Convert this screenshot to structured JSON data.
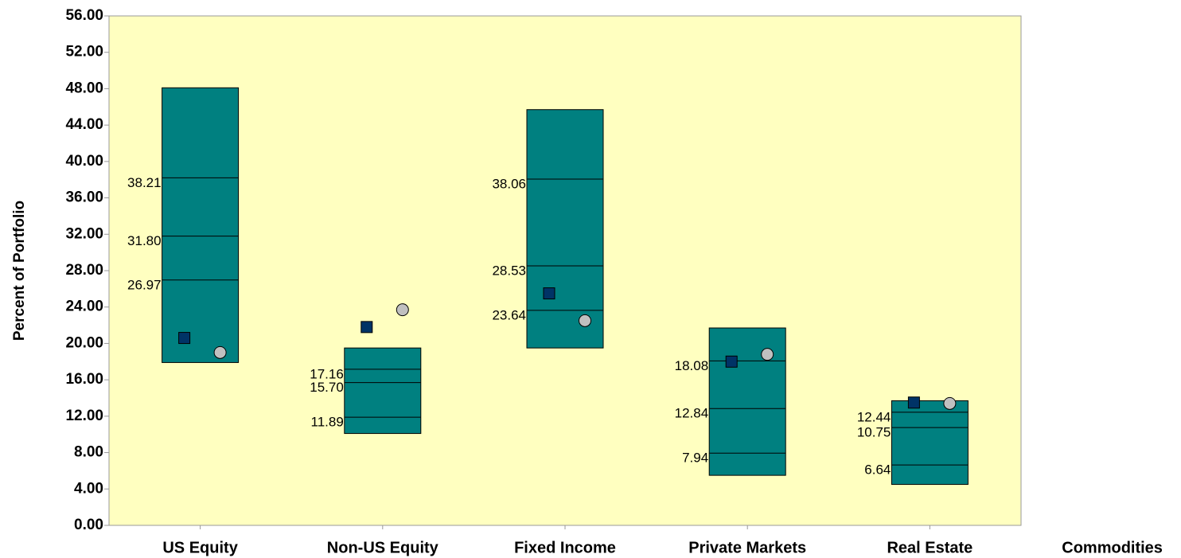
{
  "chart_data": {
    "type": "floating_box",
    "y_label": "Percent of Portfolio",
    "categories": [
      "US Equity",
      "Non-US Equity",
      "Fixed Income",
      "Private Markets",
      "Real Estate",
      "Commodities"
    ],
    "upper": [
      48.1,
      19.5,
      45.7,
      21.7,
      13.7,
      null
    ],
    "lower": [
      17.9,
      10.1,
      19.5,
      5.5,
      4.5,
      null
    ],
    "lines": [
      [
        38.21,
        31.8,
        26.97
      ],
      [
        17.16,
        15.7,
        11.89
      ],
      [
        38.06,
        28.53,
        23.64
      ],
      [
        18.08,
        12.84,
        7.94
      ],
      [
        12.44,
        10.75,
        6.64
      ],
      null
    ],
    "line_labels": [
      [
        "38.21",
        "31.80",
        "26.97"
      ],
      [
        "17.16",
        "15.70",
        "11.89"
      ],
      [
        "38.06",
        "28.53",
        "23.64"
      ],
      [
        "18.08",
        "12.84",
        "7.94"
      ],
      [
        "12.44",
        "10.75",
        "6.64"
      ],
      null
    ],
    "square": [
      20.6,
      21.8,
      25.5,
      18.0,
      13.5,
      null
    ],
    "circle": [
      19.0,
      23.7,
      22.5,
      18.8,
      13.4,
      null
    ],
    "box_color": "#008080",
    "square_color": "#003366",
    "circle_color": "#c0c0c0",
    "background": "#ffffc0",
    "ylim": [
      0,
      56
    ],
    "yticks": [
      {
        "value": 0,
        "label": "0.00"
      },
      {
        "value": 4,
        "label": "4.00"
      },
      {
        "value": 8,
        "label": "8.00"
      },
      {
        "value": 12,
        "label": "12.00"
      },
      {
        "value": 16,
        "label": "16.00"
      },
      {
        "value": 20,
        "label": "20.00"
      },
      {
        "value": 24,
        "label": "24.00"
      },
      {
        "value": 28,
        "label": "28.00"
      },
      {
        "value": 32,
        "label": "32.00"
      },
      {
        "value": 36,
        "label": "36.00"
      },
      {
        "value": 40,
        "label": "40.00"
      },
      {
        "value": 44,
        "label": "44.00"
      },
      {
        "value": 48,
        "label": "48.00"
      },
      {
        "value": 52,
        "label": "52.00"
      },
      {
        "value": 56,
        "label": "56.00"
      }
    ]
  }
}
